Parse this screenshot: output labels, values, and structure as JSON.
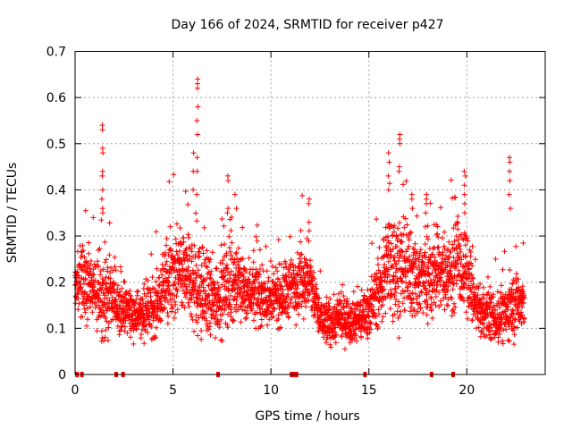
{
  "chart_data": {
    "type": "scatter",
    "title": "Day 166 of 2024, SRMTID for receiver p427",
    "xlabel": "GPS time / hours",
    "ylabel": "SRMTID / TECUs",
    "xlim": [
      0,
      24
    ],
    "ylim": [
      0,
      0.7
    ],
    "xticks": [
      0,
      5,
      10,
      15,
      20
    ],
    "yticks": [
      0,
      0.1,
      0.2,
      0.3,
      0.4,
      0.5,
      0.6,
      0.7
    ],
    "xtick_labels": [
      "0",
      "5",
      "10",
      "15",
      "20"
    ],
    "ytick_labels": [
      "0",
      "0.1",
      "0.2",
      "0.3",
      "0.4",
      "0.5",
      "0.6",
      "0.7"
    ],
    "grid": true,
    "marker": "+",
    "series_color": "#ff0000",
    "envelope": [
      {
        "x": 0.0,
        "base": 0.2,
        "spread": 0.05
      },
      {
        "x": 0.5,
        "base": 0.21,
        "spread": 0.07
      },
      {
        "x": 1.0,
        "base": 0.18,
        "spread": 0.06
      },
      {
        "x": 1.5,
        "base": 0.17,
        "spread": 0.08
      },
      {
        "x": 2.0,
        "base": 0.16,
        "spread": 0.05
      },
      {
        "x": 2.5,
        "base": 0.14,
        "spread": 0.04
      },
      {
        "x": 3.0,
        "base": 0.13,
        "spread": 0.04
      },
      {
        "x": 3.5,
        "base": 0.13,
        "spread": 0.04
      },
      {
        "x": 4.0,
        "base": 0.14,
        "spread": 0.05
      },
      {
        "x": 4.5,
        "base": 0.18,
        "spread": 0.06
      },
      {
        "x": 5.0,
        "base": 0.21,
        "spread": 0.07
      },
      {
        "x": 5.5,
        "base": 0.22,
        "spread": 0.08
      },
      {
        "x": 6.0,
        "base": 0.2,
        "spread": 0.08
      },
      {
        "x": 6.5,
        "base": 0.18,
        "spread": 0.08
      },
      {
        "x": 7.0,
        "base": 0.16,
        "spread": 0.07
      },
      {
        "x": 7.5,
        "base": 0.18,
        "spread": 0.07
      },
      {
        "x": 8.0,
        "base": 0.2,
        "spread": 0.07
      },
      {
        "x": 8.5,
        "base": 0.19,
        "spread": 0.06
      },
      {
        "x": 9.0,
        "base": 0.18,
        "spread": 0.05
      },
      {
        "x": 9.5,
        "base": 0.17,
        "spread": 0.05
      },
      {
        "x": 10.0,
        "base": 0.16,
        "spread": 0.05
      },
      {
        "x": 10.5,
        "base": 0.17,
        "spread": 0.05
      },
      {
        "x": 11.0,
        "base": 0.19,
        "spread": 0.06
      },
      {
        "x": 11.5,
        "base": 0.21,
        "spread": 0.06
      },
      {
        "x": 12.0,
        "base": 0.2,
        "spread": 0.06
      },
      {
        "x": 12.5,
        "base": 0.12,
        "spread": 0.04
      },
      {
        "x": 13.0,
        "base": 0.11,
        "spread": 0.04
      },
      {
        "x": 13.5,
        "base": 0.12,
        "spread": 0.04
      },
      {
        "x": 14.0,
        "base": 0.12,
        "spread": 0.04
      },
      {
        "x": 14.5,
        "base": 0.12,
        "spread": 0.04
      },
      {
        "x": 15.0,
        "base": 0.14,
        "spread": 0.04
      },
      {
        "x": 15.5,
        "base": 0.18,
        "spread": 0.06
      },
      {
        "x": 16.0,
        "base": 0.24,
        "spread": 0.09
      },
      {
        "x": 16.5,
        "base": 0.23,
        "spread": 0.09
      },
      {
        "x": 17.0,
        "base": 0.22,
        "spread": 0.08
      },
      {
        "x": 17.5,
        "base": 0.21,
        "spread": 0.08
      },
      {
        "x": 18.0,
        "base": 0.21,
        "spread": 0.08
      },
      {
        "x": 18.5,
        "base": 0.22,
        "spread": 0.07
      },
      {
        "x": 19.0,
        "base": 0.22,
        "spread": 0.07
      },
      {
        "x": 19.5,
        "base": 0.24,
        "spread": 0.08
      },
      {
        "x": 20.0,
        "base": 0.22,
        "spread": 0.07
      },
      {
        "x": 20.5,
        "base": 0.14,
        "spread": 0.04
      },
      {
        "x": 21.0,
        "base": 0.13,
        "spread": 0.04
      },
      {
        "x": 21.5,
        "base": 0.12,
        "spread": 0.04
      },
      {
        "x": 22.0,
        "base": 0.13,
        "spread": 0.05
      },
      {
        "x": 22.5,
        "base": 0.16,
        "spread": 0.06
      },
      {
        "x": 22.9,
        "base": 0.15,
        "spread": 0.05
      }
    ],
    "spikes": [
      {
        "x": 1.4,
        "y": [
          0.54,
          0.53,
          0.49,
          0.48,
          0.44,
          0.43,
          0.4,
          0.38,
          0.36,
          0.35
        ]
      },
      {
        "x": 6.25,
        "y": [
          0.64,
          0.63,
          0.62,
          0.58,
          0.55,
          0.52,
          0.47,
          0.44,
          0.39
        ]
      },
      {
        "x": 6.05,
        "y": [
          0.48,
          0.44,
          0.4
        ]
      },
      {
        "x": 7.8,
        "y": [
          0.43,
          0.42,
          0.36,
          0.35
        ]
      },
      {
        "x": 8.2,
        "y": [
          0.39,
          0.36
        ]
      },
      {
        "x": 11.95,
        "y": [
          0.38,
          0.37,
          0.33
        ]
      },
      {
        "x": 16.0,
        "y": [
          0.48,
          0.46,
          0.43,
          0.4
        ]
      },
      {
        "x": 16.55,
        "y": [
          0.52,
          0.51,
          0.5,
          0.45,
          0.44
        ]
      },
      {
        "x": 17.2,
        "y": [
          0.39,
          0.38,
          0.36
        ]
      },
      {
        "x": 17.9,
        "y": [
          0.39,
          0.38,
          0.37,
          0.35,
          0.32
        ]
      },
      {
        "x": 19.9,
        "y": [
          0.44,
          0.43,
          0.41,
          0.39,
          0.37,
          0.35
        ]
      },
      {
        "x": 22.2,
        "y": [
          0.47,
          0.46,
          0.44,
          0.42,
          0.39,
          0.36
        ]
      }
    ],
    "zero_points_x": [
      0.1,
      0.35,
      2.1,
      2.45,
      7.3,
      11.05,
      11.2,
      11.3,
      14.8,
      18.2,
      19.3
    ]
  }
}
